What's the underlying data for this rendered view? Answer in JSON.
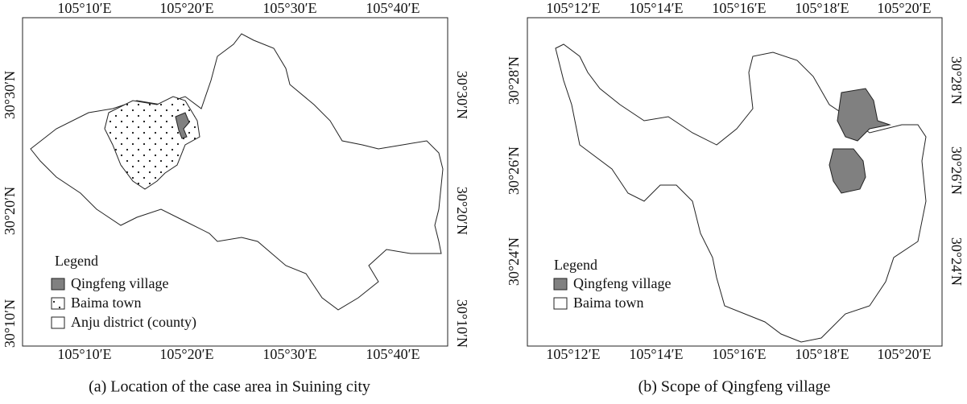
{
  "panels": [
    {
      "top_ticks": [
        "105°10′E",
        "105°20′E",
        "105°30′E",
        "105°40′E"
      ],
      "bottom_ticks": [
        "105°10′E",
        "105°20′E",
        "105°30′E",
        "105°40′E"
      ],
      "left_ticks": [
        "30°30′N",
        "30°20′N",
        "30°10′N"
      ],
      "right_ticks": [
        "30°30′N",
        "30°20′N",
        "30°10′N"
      ],
      "legend": {
        "title": "Legend",
        "items": [
          "Qingfeng village",
          "Baima town",
          "Anju district (county)"
        ]
      },
      "caption": "(a) Location of the case area in Suining city"
    },
    {
      "top_ticks": [
        "105°12′E",
        "105°14′E",
        "105°16′E",
        "105°18′E",
        "105°20′E"
      ],
      "bottom_ticks": [
        "105°12′E",
        "105°14′E",
        "105°16′E",
        "105°18′E",
        "105°20′E"
      ],
      "left_ticks": [
        "30°28′N",
        "30°26′N",
        "30°24′N"
      ],
      "right_ticks": [
        "30°28′N",
        "30°26′N",
        "30°24′N"
      ],
      "legend": {
        "title": "Legend",
        "items": [
          "Qingfeng village",
          "Baima town"
        ]
      },
      "caption": "(b) Scope of Qingfeng village"
    }
  ]
}
